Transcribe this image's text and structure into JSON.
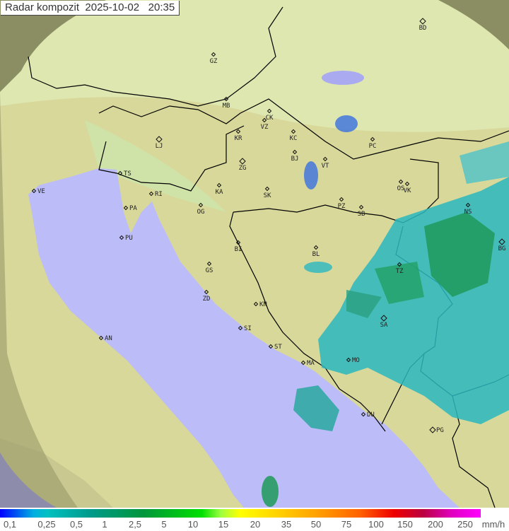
{
  "header": {
    "title": "Radar kompozit",
    "date": "2025-10-02",
    "time": "20:35"
  },
  "map": {
    "colors": {
      "sea": "#bcbcf8",
      "land": "#e8e6a8",
      "outside_coverage": "#8a8a60",
      "radar_low": "#2ab8c0",
      "radar_mid": "#1a9a60",
      "border": "#000000"
    },
    "cities": [
      "BD",
      "GZ",
      "MB",
      "CK",
      "VZ",
      "KR",
      "KC",
      "LJ",
      "ZG",
      "BJ",
      "VT",
      "PC",
      "TS",
      "VE",
      "RI",
      "KA",
      "SK",
      "OS",
      "PZ",
      "SB",
      "VK",
      "NS",
      "PA",
      "OG",
      "PU",
      "BL",
      "BG",
      "BI",
      "TZ",
      "GS",
      "ZD",
      "KN",
      "SA",
      "SI",
      "AN",
      "ST",
      "MA",
      "MO",
      "DU",
      "PG"
    ]
  },
  "legend": {
    "labels": [
      "0,1",
      "0,25",
      "0,5",
      "1",
      "2,5",
      "5",
      "10",
      "15",
      "20",
      "35",
      "50",
      "75",
      "100",
      "150",
      "200",
      "250"
    ],
    "unit": "mm/h"
  }
}
